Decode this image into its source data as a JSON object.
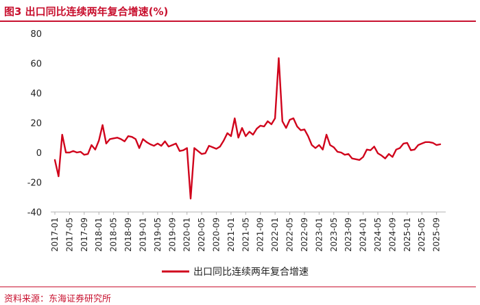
{
  "figure": {
    "title": "图3  出口同比连续两年复合增速(%)",
    "source": "资料来源：东海证券研究所"
  },
  "colors": {
    "accent": "#c8102e",
    "line": "#d0021b",
    "text": "#222222"
  },
  "chart_data": {
    "type": "line",
    "title": "",
    "xlabel": "",
    "ylabel": "",
    "ylim": [
      -40,
      80
    ],
    "yticks": [
      "80",
      "60",
      "40",
      "20",
      "0",
      "-20",
      "-40"
    ],
    "xticks": [
      "2017-01",
      "2017-05",
      "2017-09",
      "2018-01",
      "2018-05",
      "2018-09",
      "2019-01",
      "2019-05",
      "2019-09",
      "2020-01",
      "2020-05",
      "2020-09",
      "2021-01",
      "2021-05",
      "2021-09",
      "2022-01",
      "2022-05",
      "2022-09",
      "2023-01",
      "2023-05",
      "2023-09",
      "2024-01",
      "2024-05",
      "2024-09",
      "2025-01",
      "2025-05",
      "2025-09"
    ],
    "grid": false,
    "legend_position": "bottom-center",
    "series": [
      {
        "name": "出口同比连续两年复合增速",
        "x": [
          "2017-01",
          "2017-02",
          "2017-03",
          "2017-04",
          "2017-05",
          "2017-06",
          "2017-07",
          "2017-08",
          "2017-09",
          "2017-10",
          "2017-11",
          "2017-12",
          "2018-01",
          "2018-02",
          "2018-03",
          "2018-04",
          "2018-05",
          "2018-06",
          "2018-07",
          "2018-08",
          "2018-09",
          "2018-10",
          "2018-11",
          "2018-12",
          "2019-01",
          "2019-02",
          "2019-03",
          "2019-04",
          "2019-05",
          "2019-06",
          "2019-07",
          "2019-08",
          "2019-09",
          "2019-10",
          "2019-11",
          "2019-12",
          "2020-01",
          "2020-02",
          "2020-03",
          "2020-04",
          "2020-05",
          "2020-06",
          "2020-07",
          "2020-08",
          "2020-09",
          "2020-10",
          "2020-11",
          "2020-12",
          "2021-01",
          "2021-02",
          "2021-03",
          "2021-04",
          "2021-05",
          "2021-06",
          "2021-07",
          "2021-08",
          "2021-09",
          "2021-10",
          "2021-11",
          "2021-12",
          "2022-01",
          "2022-02",
          "2022-03",
          "2022-04",
          "2022-05",
          "2022-06",
          "2022-07",
          "2022-08",
          "2022-09",
          "2022-10",
          "2022-11",
          "2022-12",
          "2023-01",
          "2023-02",
          "2023-03",
          "2023-04",
          "2023-05",
          "2023-06",
          "2023-07",
          "2023-08",
          "2023-09",
          "2023-10",
          "2023-11",
          "2023-12",
          "2024-01",
          "2024-02",
          "2024-03",
          "2024-04",
          "2024-05",
          "2024-06",
          "2024-07",
          "2024-08",
          "2024-09",
          "2024-10",
          "2024-11",
          "2024-12",
          "2025-01",
          "2025-02",
          "2025-03",
          "2025-04",
          "2025-05",
          "2025-06",
          "2025-07",
          "2025-08",
          "2025-09",
          "2025-10"
        ],
        "values": [
          -5,
          -16,
          12,
          0,
          0,
          1,
          0,
          0.5,
          -1.5,
          -1,
          5,
          2,
          8,
          18.5,
          6,
          9,
          9.5,
          10,
          9,
          7.5,
          11,
          10.5,
          9,
          3,
          9,
          7,
          5.5,
          4.5,
          6,
          4.5,
          7.5,
          4,
          5,
          6,
          1,
          1.5,
          3,
          -31,
          3,
          1,
          -1,
          -0.5,
          4.5,
          3.5,
          2.5,
          4,
          8,
          13,
          11,
          23,
          10,
          16.5,
          11,
          14,
          12,
          16,
          18,
          17.5,
          21,
          19,
          23,
          63.5,
          21,
          16.5,
          22,
          23,
          17.5,
          15,
          15.5,
          11,
          5,
          3,
          5,
          2,
          12,
          5,
          3.5,
          0.5,
          0,
          -1.5,
          -1,
          -4,
          -4.5,
          -5,
          -3,
          2,
          1.5,
          4,
          -0.5,
          -2,
          -4,
          -1,
          -3,
          2,
          3,
          6,
          6.5,
          1.5,
          2,
          5,
          6,
          7,
          7,
          6.5,
          5,
          5.5
        ]
      }
    ]
  }
}
